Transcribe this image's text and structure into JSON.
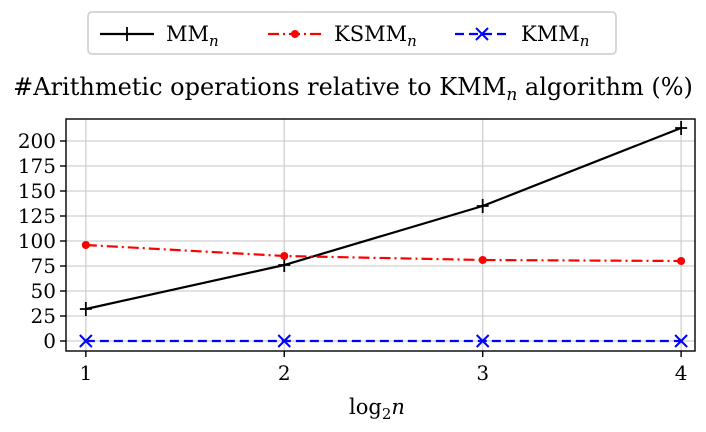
{
  "chart_data": {
    "type": "line",
    "title": "#Arithmetic operations relative to KMM",
    "title_subscript": "n",
    "title_suffix": " algorithm (%)",
    "xlabel": "log",
    "xlabel_subscript": "2",
    "xlabel_var": "n",
    "x": [
      1,
      2,
      3,
      4
    ],
    "xlim": [
      0.9,
      4.07
    ],
    "ylim": [
      -10,
      222
    ],
    "yticks": [
      0,
      25,
      50,
      75,
      100,
      125,
      150,
      175,
      200
    ],
    "grid": true,
    "legend_position": "top-center",
    "series": [
      {
        "name": "MM",
        "name_subscript": "n",
        "values": [
          32,
          76,
          135,
          213
        ],
        "color": "#000000",
        "linestyle": "solid",
        "marker": "plus"
      },
      {
        "name": "KSMM",
        "name_subscript": "n",
        "values": [
          96,
          85,
          81,
          80
        ],
        "color": "#ff0000",
        "linestyle": "dashdot",
        "marker": "dot"
      },
      {
        "name": "KMM",
        "name_subscript": "n",
        "values": [
          0,
          0,
          0,
          0
        ],
        "color": "#0000ff",
        "linestyle": "dashed",
        "marker": "x"
      }
    ]
  }
}
